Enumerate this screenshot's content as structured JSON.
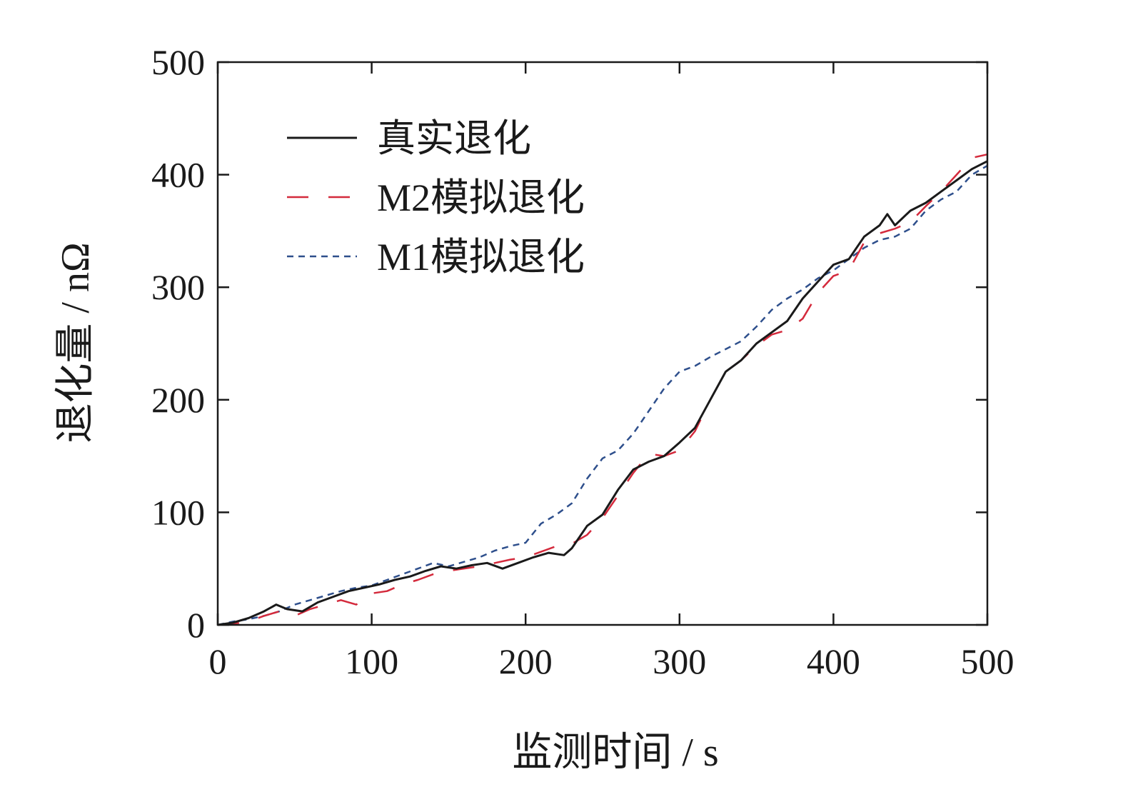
{
  "chart_data": {
    "type": "line",
    "xlabel": "监测时间 / s",
    "ylabel": "退化量 / nΩ",
    "xlim": [
      0,
      500
    ],
    "ylim": [
      0,
      500
    ],
    "xticks": [
      "0",
      "100",
      "200",
      "300",
      "400",
      "500"
    ],
    "yticks": [
      "0",
      "100",
      "200",
      "300",
      "400",
      "500"
    ],
    "grid": false,
    "legend_position": "top-left",
    "series": [
      {
        "name": "真实退化",
        "color": "#1a1a1a",
        "style": "solid",
        "x": [
          0,
          10,
          20,
          30,
          38,
          45,
          55,
          65,
          75,
          85,
          95,
          105,
          115,
          125,
          135,
          145,
          155,
          165,
          175,
          185,
          195,
          205,
          215,
          225,
          230,
          240,
          250,
          260,
          270,
          280,
          290,
          300,
          310,
          320,
          330,
          340,
          350,
          360,
          370,
          380,
          390,
          400,
          410,
          420,
          430,
          435,
          440,
          450,
          460,
          470,
          480,
          490,
          500
        ],
        "values": [
          0,
          2,
          6,
          12,
          18,
          14,
          12,
          20,
          25,
          30,
          33,
          36,
          40,
          43,
          48,
          52,
          50,
          53,
          55,
          50,
          55,
          60,
          64,
          62,
          68,
          88,
          98,
          120,
          138,
          145,
          150,
          162,
          175,
          200,
          225,
          235,
          250,
          260,
          270,
          290,
          305,
          320,
          325,
          345,
          355,
          365,
          355,
          368,
          375,
          385,
          395,
          405,
          412
        ]
      },
      {
        "name": "M2模拟退化",
        "color": "#d42a3c",
        "style": "long-dash",
        "x": [
          0,
          10,
          20,
          30,
          40,
          50,
          60,
          70,
          80,
          90,
          100,
          110,
          120,
          130,
          140,
          150,
          160,
          170,
          180,
          190,
          200,
          210,
          220,
          230,
          240,
          250,
          260,
          270,
          280,
          290,
          300,
          310,
          320,
          330,
          340,
          350,
          360,
          370,
          380,
          390,
          400,
          410,
          420,
          430,
          440,
          450,
          460,
          470,
          480,
          490,
          500
        ],
        "values": [
          0,
          1,
          3,
          8,
          12,
          8,
          14,
          18,
          22,
          18,
          28,
          30,
          36,
          40,
          45,
          48,
          50,
          52,
          55,
          58,
          60,
          65,
          70,
          72,
          80,
          95,
          115,
          135,
          152,
          150,
          155,
          172,
          200,
          225,
          235,
          248,
          258,
          262,
          272,
          295,
          310,
          315,
          340,
          348,
          352,
          358,
          372,
          385,
          400,
          415,
          418
        ]
      },
      {
        "name": "M1模拟退化",
        "color": "#2e4f8c",
        "style": "short-dash",
        "x": [
          0,
          10,
          20,
          30,
          40,
          50,
          60,
          70,
          80,
          90,
          100,
          110,
          120,
          130,
          140,
          150,
          160,
          170,
          180,
          190,
          200,
          210,
          220,
          230,
          240,
          250,
          260,
          270,
          280,
          290,
          300,
          310,
          320,
          330,
          340,
          350,
          360,
          370,
          380,
          390,
          400,
          410,
          420,
          430,
          440,
          450,
          460,
          470,
          480,
          490,
          500
        ],
        "values": [
          0,
          3,
          5,
          8,
          12,
          18,
          22,
          26,
          30,
          33,
          35,
          40,
          45,
          50,
          55,
          52,
          56,
          60,
          66,
          70,
          73,
          90,
          98,
          108,
          130,
          148,
          155,
          170,
          190,
          210,
          225,
          230,
          238,
          245,
          252,
          265,
          280,
          290,
          298,
          308,
          315,
          325,
          335,
          342,
          345,
          352,
          368,
          378,
          385,
          400,
          408
        ]
      }
    ]
  }
}
